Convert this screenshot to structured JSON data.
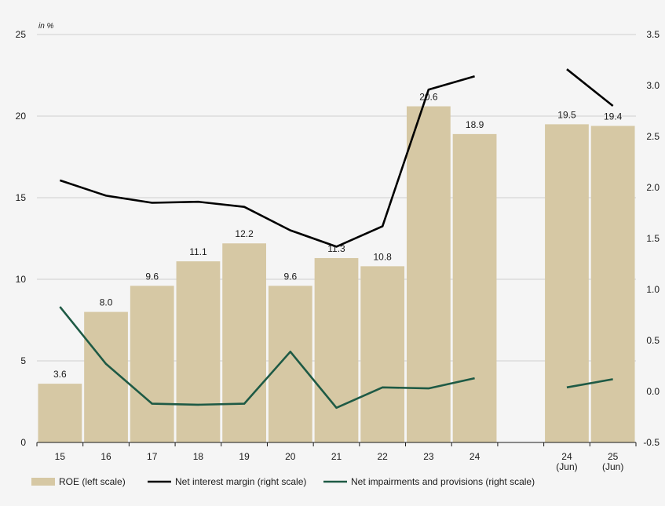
{
  "chart_data": {
    "type": "bar",
    "unit_label": "in %",
    "categories": [
      {
        "lines": [
          "15"
        ]
      },
      {
        "lines": [
          "16"
        ]
      },
      {
        "lines": [
          "17"
        ]
      },
      {
        "lines": [
          "18"
        ]
      },
      {
        "lines": [
          "19"
        ]
      },
      {
        "lines": [
          "20"
        ]
      },
      {
        "lines": [
          "21"
        ]
      },
      {
        "lines": [
          "22"
        ]
      },
      {
        "lines": [
          "23"
        ]
      },
      {
        "lines": [
          "24"
        ]
      },
      {
        "lines": [],
        "gap": true
      },
      {
        "lines": [
          "24",
          "(Jun)"
        ]
      },
      {
        "lines": [
          "25",
          "(Jun)"
        ]
      }
    ],
    "left_axis": {
      "min": 0,
      "max": 25,
      "ticks": [
        "0",
        "5",
        "10",
        "15",
        "20",
        "25"
      ]
    },
    "right_axis": {
      "min": -0.5,
      "max": 3.5,
      "ticks": [
        "-0.5",
        "0.0",
        "0.5",
        "1.0",
        "1.5",
        "2.0",
        "2.5",
        "3.0",
        "3.5"
      ]
    },
    "grid": true,
    "legend_position": "bottom",
    "series": [
      {
        "name": "ROE (left scale)",
        "kind": "bar",
        "axis": "left",
        "color": "#d6c8a4",
        "values": [
          3.6,
          8.0,
          9.6,
          11.1,
          12.2,
          9.6,
          11.3,
          10.8,
          20.6,
          18.9,
          null,
          19.5,
          19.4
        ],
        "labels": [
          "3.6",
          "8.0",
          "9.6",
          "11.1",
          "12.2",
          "9.6",
          "11.3",
          "10.8",
          "20.6",
          "18.9",
          null,
          "19.5",
          "19.4"
        ]
      },
      {
        "name": "Net interest margin (right scale)",
        "kind": "line",
        "axis": "right",
        "color": "#000000",
        "values": [
          2.07,
          1.92,
          1.85,
          1.86,
          1.81,
          1.58,
          1.42,
          1.62,
          2.96,
          3.09,
          null,
          3.16,
          2.8
        ]
      },
      {
        "name": "Net impairments and provisions (right scale)",
        "kind": "line",
        "axis": "right",
        "color": "#1e5a45",
        "values": [
          0.83,
          0.27,
          -0.12,
          -0.13,
          -0.12,
          0.39,
          -0.16,
          0.04,
          0.03,
          0.13,
          null,
          0.04,
          0.12
        ]
      }
    ]
  }
}
